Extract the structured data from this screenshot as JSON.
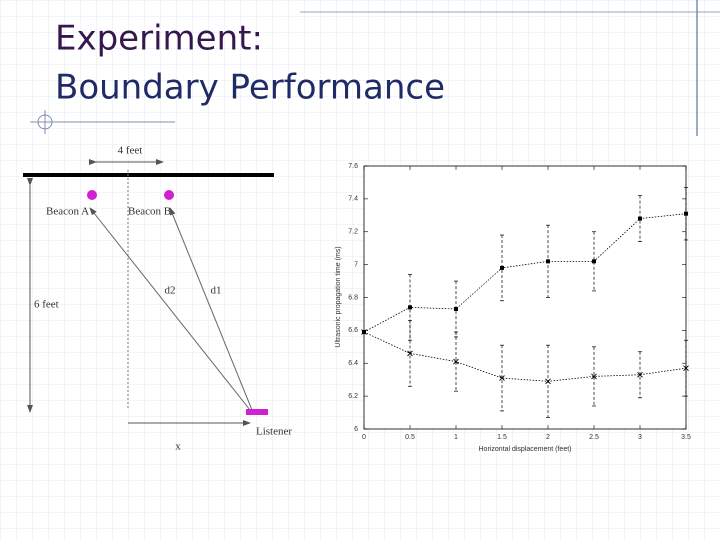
{
  "header": {
    "title_1": "Experiment:",
    "title_2": "Boundary Performance"
  },
  "diagram": {
    "width_label": "4 feet",
    "beacon_a": "Beacon A",
    "beacon_b": "Beacon B",
    "height_label": "6 feet",
    "d2": "d2",
    "d1": "d1",
    "listener": "Listener",
    "x_label": "x"
  },
  "chart_data": {
    "type": "errorbar_line",
    "xlabel": "Horizontal displacement (feet)",
    "ylabel": "Ultrasonic propagation time (ms)",
    "xlim": [
      0,
      3.5
    ],
    "xticks": [
      0,
      0.5,
      1,
      1.5,
      2,
      2.5,
      3,
      3.5
    ],
    "ylim": [
      6,
      7.6
    ],
    "yticks": [
      6,
      6.2,
      6.4,
      6.6,
      6.8,
      7,
      7.2,
      7.4,
      7.6
    ],
    "series": [
      {
        "color": "#000000",
        "marker": "square",
        "x": [
          0,
          0.5,
          1,
          1.5,
          2,
          2.5,
          3,
          3.5
        ],
        "values": [
          6.59,
          6.74,
          6.73,
          6.98,
          7.02,
          7.02,
          7.28,
          7.31
        ],
        "errors": [
          0,
          0.2,
          0.17,
          0.2,
          0.22,
          0.18,
          0.14,
          0.16
        ]
      },
      {
        "color": "#000000",
        "marker": "x",
        "x": [
          0,
          0.5,
          1,
          1.5,
          2,
          2.5,
          3,
          3.5
        ],
        "values": [
          6.59,
          6.46,
          6.41,
          6.31,
          6.29,
          6.32,
          6.33,
          6.37
        ],
        "errors": [
          0,
          0.2,
          0.18,
          0.2,
          0.22,
          0.18,
          0.14,
          0.17
        ]
      }
    ]
  }
}
